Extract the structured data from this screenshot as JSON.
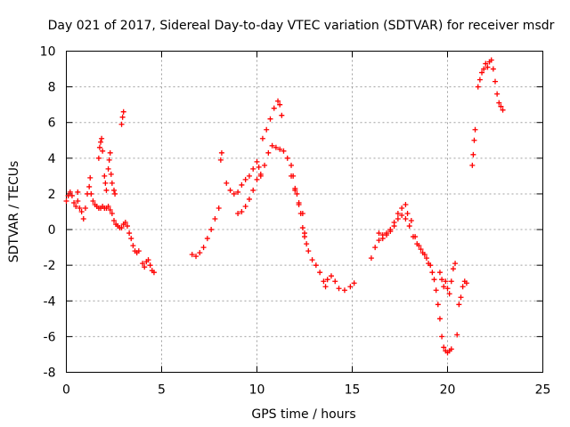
{
  "chart_data": {
    "type": "scatter",
    "title": "Day 021 of 2017, Sidereal Day-to-day VTEC variation (SDTVAR) for receiver msdr",
    "xlabel": "GPS time / hours",
    "ylabel": "SDTVAR / TECUs",
    "xlim": [
      0,
      25
    ],
    "ylim": [
      -8,
      10
    ],
    "xticks": [
      0,
      5,
      10,
      15,
      20,
      25
    ],
    "yticks": [
      -8,
      -6,
      -4,
      -2,
      0,
      2,
      4,
      6,
      8,
      10
    ],
    "grid": true,
    "marker": "+",
    "color": "#ff0000",
    "series": [
      {
        "name": "segment-1",
        "points": [
          [
            0.0,
            1.6
          ],
          [
            0.1,
            1.9
          ],
          [
            0.2,
            2.1
          ],
          [
            0.3,
            1.9
          ],
          [
            0.4,
            1.5
          ],
          [
            0.5,
            1.3
          ],
          [
            0.6,
            1.6
          ],
          [
            0.7,
            1.2
          ],
          [
            0.8,
            1.0
          ],
          [
            0.9,
            0.6
          ],
          [
            1.0,
            1.2
          ],
          [
            1.1,
            2.0
          ],
          [
            1.2,
            2.4
          ],
          [
            1.3,
            2.0
          ],
          [
            1.4,
            1.6
          ],
          [
            1.5,
            1.4
          ],
          [
            1.6,
            1.3
          ],
          [
            1.7,
            1.2
          ],
          [
            1.8,
            1.2
          ],
          [
            1.9,
            1.3
          ],
          [
            2.0,
            1.2
          ],
          [
            2.1,
            1.2
          ],
          [
            2.2,
            1.3
          ],
          [
            2.3,
            1.1
          ],
          [
            2.4,
            0.9
          ],
          [
            2.5,
            0.5
          ],
          [
            2.6,
            0.3
          ],
          [
            2.7,
            0.2
          ],
          [
            2.8,
            0.1
          ],
          [
            2.9,
            0.1
          ],
          [
            3.0,
            0.3
          ],
          [
            3.1,
            0.4
          ],
          [
            3.2,
            0.2
          ],
          [
            3.3,
            -0.2
          ],
          [
            3.4,
            -0.5
          ],
          [
            3.5,
            -0.9
          ],
          [
            3.6,
            -1.2
          ],
          [
            3.7,
            -1.3
          ],
          [
            3.8,
            -1.2
          ]
        ]
      },
      {
        "name": "segment-1-spikes",
        "points": [
          [
            0.6,
            2.1
          ],
          [
            1.25,
            2.9
          ],
          [
            1.7,
            4.0
          ],
          [
            1.75,
            4.6
          ],
          [
            1.8,
            4.9
          ],
          [
            1.85,
            5.1
          ],
          [
            1.9,
            4.4
          ],
          [
            2.0,
            3.0
          ],
          [
            2.05,
            2.6
          ],
          [
            2.1,
            2.2
          ],
          [
            2.2,
            3.4
          ],
          [
            2.25,
            3.9
          ],
          [
            2.3,
            4.3
          ],
          [
            2.35,
            3.1
          ],
          [
            2.4,
            2.6
          ],
          [
            2.5,
            2.2
          ],
          [
            2.55,
            2.0
          ],
          [
            2.9,
            5.9
          ],
          [
            2.95,
            6.3
          ],
          [
            3.0,
            6.6
          ]
        ]
      },
      {
        "name": "segment-2",
        "points": [
          [
            4.0,
            -1.9
          ],
          [
            4.1,
            -2.1
          ],
          [
            4.2,
            -1.8
          ],
          [
            4.3,
            -1.7
          ],
          [
            4.4,
            -2.0
          ],
          [
            4.5,
            -2.3
          ],
          [
            4.6,
            -2.4
          ]
        ]
      },
      {
        "name": "segment-3",
        "points": [
          [
            6.6,
            -1.4
          ],
          [
            6.8,
            -1.5
          ],
          [
            7.0,
            -1.3
          ],
          [
            7.2,
            -1.0
          ],
          [
            7.4,
            -0.5
          ],
          [
            7.6,
            0.0
          ],
          [
            7.8,
            0.6
          ],
          [
            8.0,
            1.2
          ],
          [
            8.1,
            3.9
          ],
          [
            8.15,
            4.3
          ],
          [
            8.4,
            2.6
          ],
          [
            8.6,
            2.2
          ],
          [
            8.8,
            2.0
          ],
          [
            9.0,
            2.1
          ],
          [
            9.2,
            2.5
          ],
          [
            9.4,
            2.8
          ],
          [
            9.6,
            3.0
          ],
          [
            9.8,
            3.4
          ],
          [
            10.0,
            3.8
          ],
          [
            10.1,
            3.5
          ],
          [
            10.2,
            3.0
          ],
          [
            10.3,
            5.1
          ],
          [
            10.5,
            5.6
          ],
          [
            10.7,
            6.2
          ],
          [
            10.9,
            6.8
          ],
          [
            11.1,
            7.2
          ],
          [
            11.2,
            7.0
          ],
          [
            11.3,
            6.4
          ]
        ]
      },
      {
        "name": "segment-3-low",
        "points": [
          [
            9.0,
            0.9
          ],
          [
            9.2,
            1.0
          ],
          [
            9.4,
            1.3
          ],
          [
            9.6,
            1.7
          ],
          [
            9.8,
            2.2
          ],
          [
            10.0,
            2.8
          ],
          [
            10.2,
            3.1
          ],
          [
            10.4,
            3.6
          ],
          [
            10.6,
            4.3
          ],
          [
            10.8,
            4.7
          ],
          [
            11.0,
            4.6
          ],
          [
            11.2,
            4.5
          ],
          [
            11.4,
            4.4
          ],
          [
            11.6,
            4.0
          ],
          [
            11.8,
            3.0
          ],
          [
            12.0,
            2.2
          ],
          [
            12.2,
            1.5
          ],
          [
            12.4,
            0.9
          ],
          [
            12.5,
            -0.2
          ],
          [
            12.6,
            -0.8
          ],
          [
            12.7,
            -1.2
          ],
          [
            12.9,
            -1.7
          ],
          [
            13.1,
            -2.0
          ],
          [
            13.3,
            -2.4
          ],
          [
            13.5,
            -2.9
          ],
          [
            13.6,
            -3.2
          ],
          [
            13.7,
            -2.8
          ],
          [
            13.9,
            -2.6
          ],
          [
            14.1,
            -2.9
          ],
          [
            14.3,
            -3.3
          ],
          [
            14.6,
            -3.4
          ],
          [
            14.9,
            -3.2
          ],
          [
            15.1,
            -3.0
          ]
        ]
      },
      {
        "name": "segment-3-branch",
        "points": [
          [
            11.8,
            3.6
          ],
          [
            11.9,
            3.0
          ],
          [
            12.0,
            2.3
          ],
          [
            12.1,
            2.0
          ],
          [
            12.2,
            1.4
          ],
          [
            12.3,
            0.9
          ],
          [
            12.4,
            0.1
          ],
          [
            12.5,
            -0.4
          ]
        ]
      },
      {
        "name": "segment-4",
        "points": [
          [
            16.0,
            -1.6
          ],
          [
            16.2,
            -1.0
          ],
          [
            16.4,
            -0.6
          ],
          [
            16.6,
            -0.3
          ],
          [
            16.8,
            -0.2
          ],
          [
            17.0,
            -0.1
          ],
          [
            17.2,
            0.2
          ],
          [
            17.4,
            0.6
          ],
          [
            17.6,
            0.8
          ],
          [
            17.8,
            0.6
          ],
          [
            18.0,
            0.2
          ],
          [
            18.2,
            -0.4
          ],
          [
            18.4,
            -0.8
          ],
          [
            18.6,
            -1.1
          ],
          [
            18.8,
            -1.4
          ],
          [
            19.0,
            -1.9
          ],
          [
            19.2,
            -2.4
          ],
          [
            19.4,
            -3.4
          ],
          [
            19.5,
            -4.2
          ],
          [
            19.6,
            -5.0
          ],
          [
            19.7,
            -6.0
          ],
          [
            19.8,
            -6.6
          ],
          [
            19.9,
            -6.8
          ],
          [
            20.0,
            -6.9
          ],
          [
            20.1,
            -6.8
          ],
          [
            20.2,
            -6.7
          ]
        ]
      },
      {
        "name": "segment-4-upper",
        "points": [
          [
            16.4,
            -0.2
          ],
          [
            16.6,
            -0.5
          ],
          [
            16.8,
            -0.3
          ],
          [
            17.0,
            0.0
          ],
          [
            17.2,
            0.4
          ],
          [
            17.4,
            0.9
          ],
          [
            17.6,
            1.2
          ],
          [
            17.8,
            1.4
          ],
          [
            17.9,
            0.9
          ],
          [
            18.1,
            0.5
          ],
          [
            18.3,
            -0.4
          ],
          [
            18.5,
            -0.9
          ],
          [
            18.7,
            -1.3
          ],
          [
            18.9,
            -1.6
          ],
          [
            19.1,
            -2.0
          ],
          [
            19.3,
            -2.8
          ]
        ]
      },
      {
        "name": "segment-4-scatter",
        "points": [
          [
            19.6,
            -2.4
          ],
          [
            19.7,
            -2.8
          ],
          [
            19.8,
            -3.2
          ],
          [
            19.9,
            -2.9
          ],
          [
            20.0,
            -3.3
          ],
          [
            20.1,
            -3.6
          ],
          [
            20.2,
            -2.9
          ],
          [
            20.3,
            -2.2
          ],
          [
            20.4,
            -1.9
          ],
          [
            20.5,
            -5.9
          ],
          [
            20.6,
            -4.2
          ],
          [
            20.7,
            -3.8
          ],
          [
            20.8,
            -3.2
          ],
          [
            20.9,
            -2.9
          ],
          [
            21.0,
            -3.0
          ]
        ]
      },
      {
        "name": "segment-5",
        "points": [
          [
            21.3,
            3.6
          ],
          [
            21.35,
            4.2
          ],
          [
            21.4,
            5.0
          ],
          [
            21.45,
            5.6
          ],
          [
            21.6,
            8.0
          ],
          [
            21.7,
            8.4
          ],
          [
            21.8,
            8.8
          ],
          [
            21.9,
            9.0
          ],
          [
            22.0,
            9.3
          ],
          [
            22.1,
            9.1
          ],
          [
            22.2,
            9.4
          ],
          [
            22.3,
            9.5
          ],
          [
            22.4,
            9.0
          ],
          [
            22.5,
            8.3
          ],
          [
            22.6,
            7.6
          ],
          [
            22.7,
            7.1
          ],
          [
            22.8,
            6.9
          ],
          [
            22.9,
            6.7
          ]
        ]
      }
    ]
  }
}
